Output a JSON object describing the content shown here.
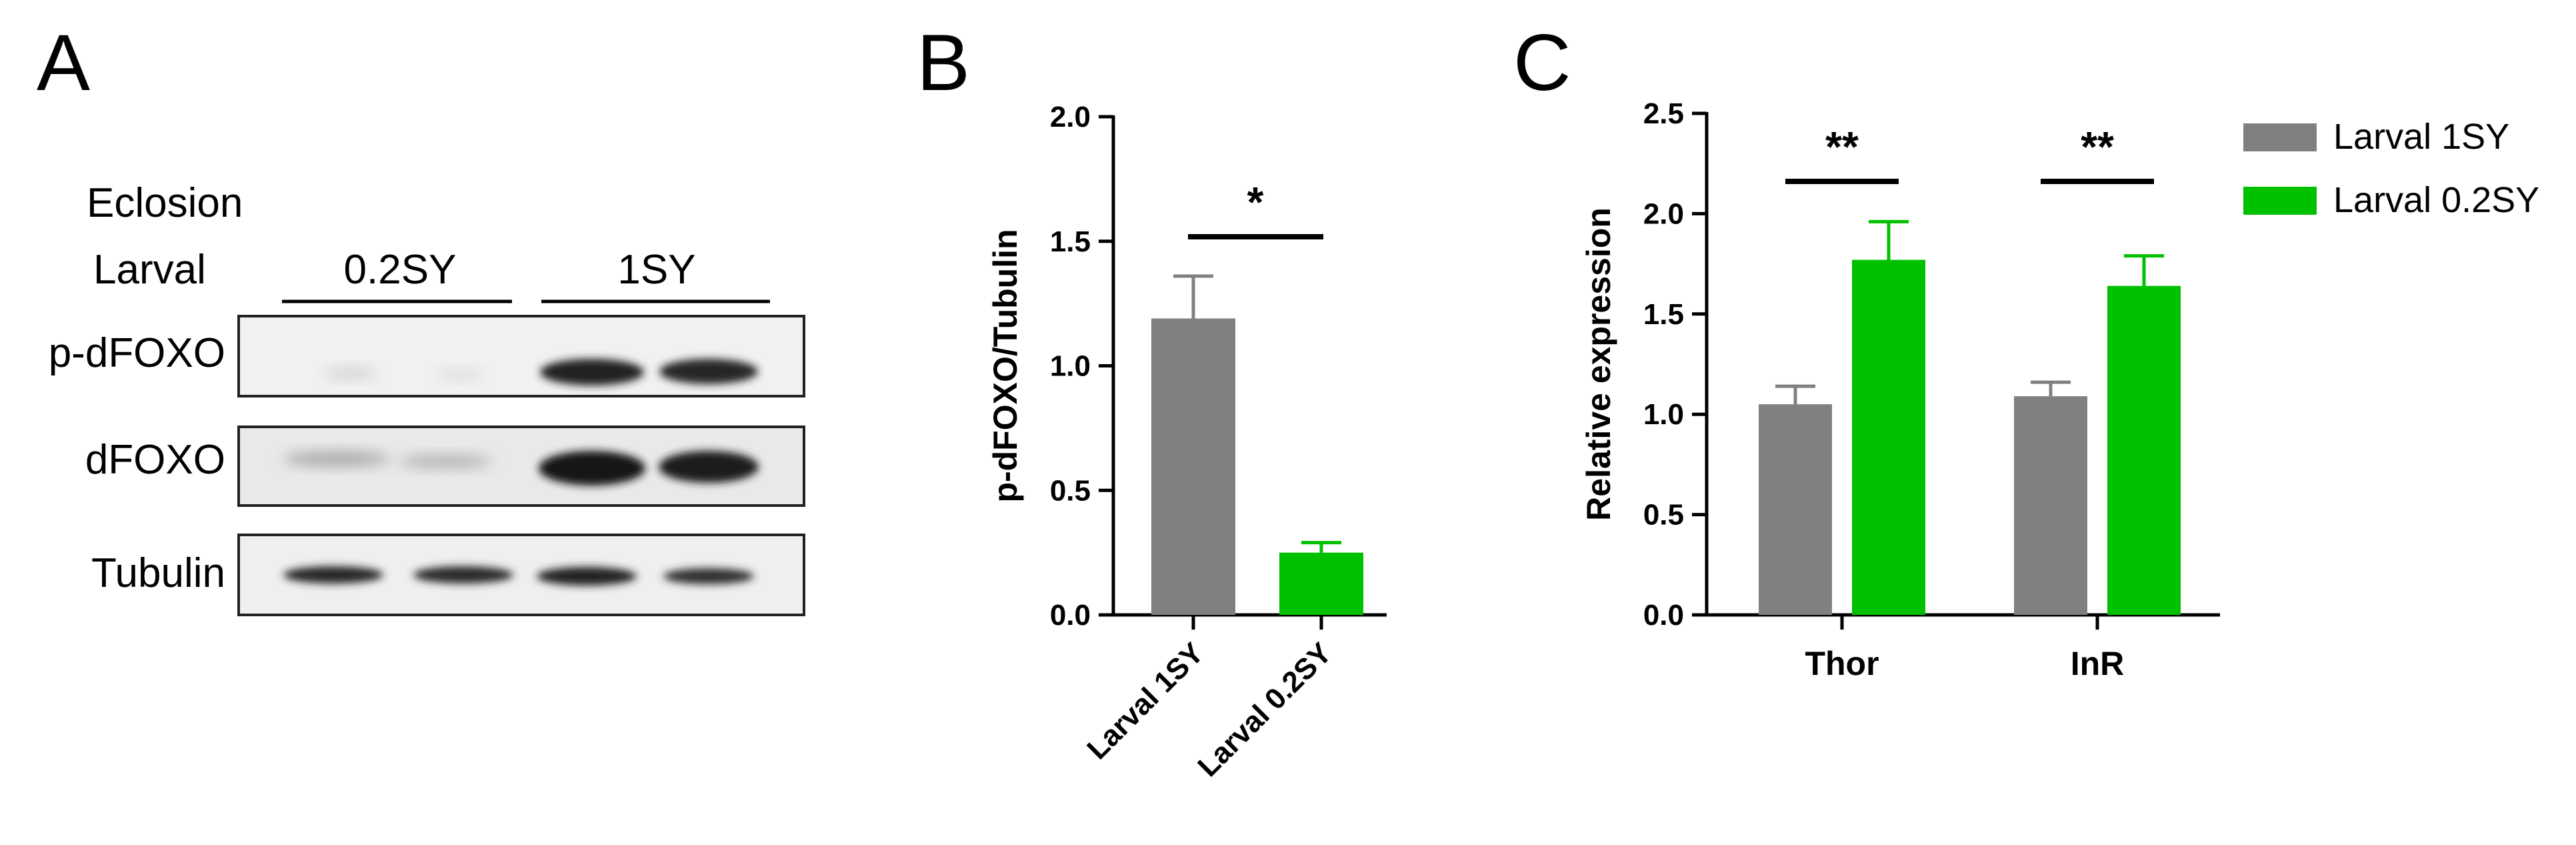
{
  "panels": {
    "a": {
      "letter": "A",
      "eclosion_label": "Eclosion",
      "larval_label": "Larval",
      "groups": [
        "0.2SY",
        "1SY"
      ],
      "rows": [
        "p-dFOXO",
        "dFOXO",
        "Tubulin"
      ]
    },
    "b": {
      "letter": "B"
    },
    "c": {
      "letter": "C"
    }
  },
  "colors": {
    "grey": "#808080",
    "green": "#00c000"
  },
  "chart_data": [
    {
      "panel": "B",
      "type": "bar",
      "categories": [
        "Larval 1SY",
        "Larval 0.2SY"
      ],
      "values": [
        1.19,
        0.25
      ],
      "errors": [
        0.17,
        0.04
      ],
      "colors": [
        "#808080",
        "#00c000"
      ],
      "ylabel": "p-dFOXO/Tubulin",
      "ylim": [
        0,
        2.0
      ],
      "yticks": [
        "0.0",
        "0.5",
        "1.0",
        "1.5",
        "2.0"
      ],
      "significance": "*"
    },
    {
      "panel": "C",
      "type": "bar",
      "categories": [
        "Thor",
        "InR"
      ],
      "series": [
        {
          "name": "Larval 1SY",
          "values": [
            1.05,
            1.09
          ],
          "errors": [
            0.09,
            0.07
          ],
          "color": "#808080"
        },
        {
          "name": "Larval 0.2SY",
          "values": [
            1.77,
            1.64
          ],
          "errors": [
            0.19,
            0.15
          ],
          "color": "#00c000"
        }
      ],
      "ylabel": "Relative expression",
      "ylim": [
        0,
        2.5
      ],
      "yticks": [
        "0.0",
        "0.5",
        "1.0",
        "1.5",
        "2.0",
        "2.5"
      ],
      "significance": [
        "**",
        "**"
      ],
      "legend": "top-right"
    }
  ]
}
